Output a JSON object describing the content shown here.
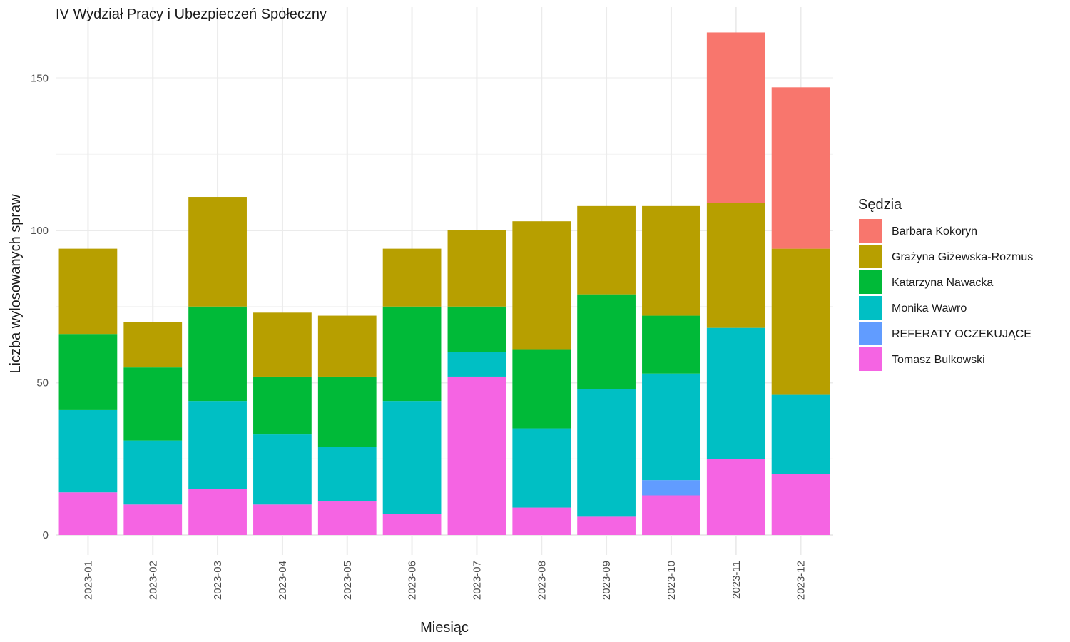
{
  "chart_data": {
    "type": "bar",
    "stacked": true,
    "title": "IV Wydział Pracy i Ubezpieczeń Społeczny",
    "xlabel": "Miesiąc",
    "ylabel": "Liczba wylosowanych spraw",
    "ylim": [
      -6,
      167
    ],
    "yticks": [
      0,
      50,
      100,
      150
    ],
    "grid": true,
    "legend_title": "Sędzia",
    "legend_position": "right",
    "categories": [
      "2023-01",
      "2023-02",
      "2023-03",
      "2023-04",
      "2023-05",
      "2023-06",
      "2023-07",
      "2023-08",
      "2023-09",
      "2023-10",
      "2023-11",
      "2023-12"
    ],
    "series": [
      {
        "name": "Tomasz Bulkowski",
        "color": "#F564E3",
        "values": [
          14,
          10,
          15,
          10,
          11,
          7,
          52,
          9,
          6,
          13,
          25,
          20
        ]
      },
      {
        "name": "REFERATY OCZEKUJĄCE",
        "color": "#619CFF",
        "values": [
          0,
          0,
          0,
          0,
          0,
          0,
          0,
          0,
          0,
          5,
          0,
          0
        ]
      },
      {
        "name": "Monika Wawro",
        "color": "#00BFC4",
        "values": [
          27,
          21,
          29,
          23,
          18,
          37,
          8,
          26,
          42,
          35,
          43,
          26
        ]
      },
      {
        "name": "Katarzyna Nawacka",
        "color": "#00BA38",
        "values": [
          25,
          24,
          31,
          19,
          23,
          31,
          15,
          26,
          31,
          19,
          0,
          0
        ]
      },
      {
        "name": "Grażyna Giżewska-Rozmus",
        "color": "#B79F00",
        "values": [
          28,
          15,
          36,
          21,
          20,
          19,
          25,
          42,
          29,
          36,
          41,
          48
        ]
      },
      {
        "name": "Barbara Kokoryn",
        "color": "#F8766D",
        "values": [
          0,
          0,
          0,
          0,
          0,
          0,
          0,
          0,
          0,
          0,
          56,
          53
        ]
      }
    ],
    "legend_order": [
      "Barbara Kokoryn",
      "Grażyna Giżewska-Rozmus",
      "Katarzyna Nawacka",
      "Monika Wawro",
      "REFERATY OCZEKUJĄCE",
      "Tomasz Bulkowski"
    ]
  }
}
